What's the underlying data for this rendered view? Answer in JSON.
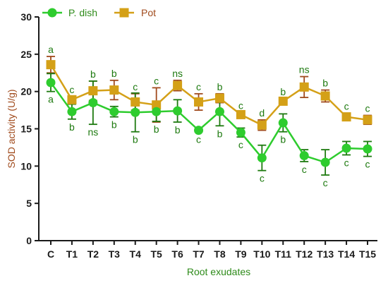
{
  "chart_data": {
    "type": "line",
    "xlabel": "Root exudates",
    "ylabel": "SOD activity (U/g)",
    "ylim": [
      0,
      30
    ],
    "yticks": [
      0,
      5,
      10,
      15,
      20,
      25,
      30
    ],
    "categories": [
      "C",
      "T1",
      "T2",
      "T3",
      "T4",
      "T5",
      "T6",
      "T7",
      "T8",
      "T9",
      "T10",
      "T11",
      "T12",
      "T13",
      "T14",
      "T15"
    ],
    "legend_position": "top-left",
    "series": [
      {
        "name": "P. dish",
        "color": "#2ecc2e",
        "marker": "circle",
        "values": [
          21.2,
          17.3,
          18.5,
          17.3,
          17.2,
          17.3,
          17.4,
          14.8,
          17.3,
          14.5,
          11.1,
          15.8,
          11.4,
          10.5,
          12.4,
          12.3
        ],
        "errors": [
          1.2,
          1.0,
          2.9,
          0.7,
          2.6,
          1.3,
          1.5,
          0.2,
          1.9,
          0.6,
          1.7,
          1.2,
          0.8,
          1.7,
          0.9,
          1.0
        ],
        "labels": [
          "a",
          "b",
          "ns",
          "b",
          "b",
          "b",
          "b",
          "c",
          "b",
          "c",
          "c",
          "b",
          "c",
          "c",
          "c",
          "c"
        ]
      },
      {
        "name": "Pot",
        "color": "#d4a017",
        "marker": "square",
        "values": [
          23.6,
          18.9,
          20.1,
          20.2,
          18.6,
          18.2,
          20.8,
          18.6,
          19.1,
          16.9,
          15.5,
          18.7,
          20.6,
          19.4,
          16.6,
          16.2
        ],
        "errors": [
          1.1,
          0.4,
          1.3,
          1.3,
          1.1,
          2.3,
          0.7,
          1.1,
          0.6,
          0.3,
          0.7,
          0.3,
          1.4,
          0.8,
          0.5,
          0.6
        ],
        "labels": [
          "a",
          "c",
          "b",
          "b",
          "c",
          "c",
          "ns",
          "c",
          "b",
          "c",
          "d",
          "b",
          "ns",
          "b",
          "c",
          "c"
        ]
      }
    ]
  },
  "colors": {
    "ylabel": "#a04a1c",
    "xlabel": "#2e8b1a",
    "axis": "#1a1a1a",
    "annotation": "#1e7a10",
    "errorbar_pdish": "#1e7a10",
    "errorbar_pot": "#a04a1c"
  }
}
